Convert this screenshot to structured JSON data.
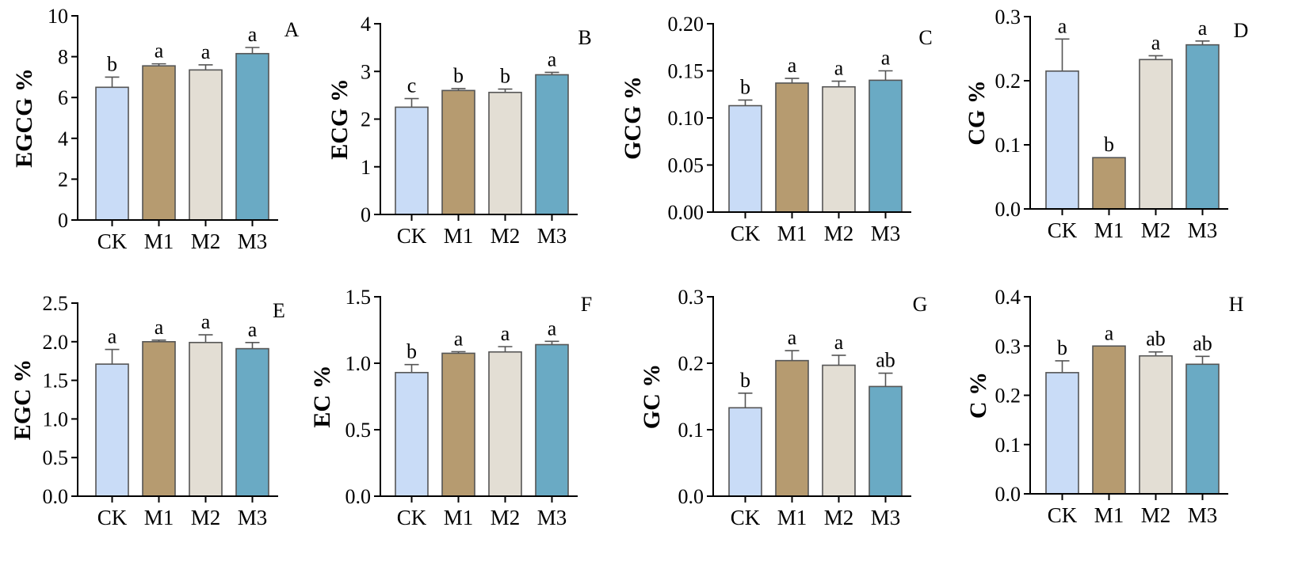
{
  "colors": [
    "#c9dcf7",
    "#b69b70",
    "#e3ded4",
    "#6aaac4"
  ],
  "chart_data": [
    {
      "type": "bar",
      "panel": "A",
      "ylabel": "EGCG %",
      "categories": [
        "CK",
        "M1",
        "M2",
        "M3"
      ],
      "values": [
        6.5,
        7.55,
        7.35,
        8.15
      ],
      "errors": [
        0.5,
        0.1,
        0.25,
        0.3
      ],
      "letters": [
        "b",
        "a",
        "a",
        "a"
      ],
      "ylim": [
        0,
        10
      ],
      "ticks": [
        0,
        2,
        4,
        6,
        8,
        10
      ],
      "tick_labels": [
        "0",
        "2",
        "4",
        "6",
        "8",
        "10"
      ]
    },
    {
      "type": "bar",
      "panel": "B",
      "ylabel": "ECG %",
      "categories": [
        "CK",
        "M1",
        "M2",
        "M3"
      ],
      "values": [
        2.25,
        2.6,
        2.56,
        2.93
      ],
      "errors": [
        0.18,
        0.04,
        0.07,
        0.05
      ],
      "letters": [
        "c",
        "b",
        "b",
        "a"
      ],
      "ylim": [
        0,
        4
      ],
      "ticks": [
        0,
        1,
        2,
        3,
        4
      ],
      "tick_labels": [
        "0",
        "1",
        "2",
        "3",
        "4"
      ]
    },
    {
      "type": "bar",
      "panel": "C",
      "ylabel": "GCG %",
      "categories": [
        "CK",
        "M1",
        "M2",
        "M3"
      ],
      "values": [
        0.113,
        0.137,
        0.133,
        0.14
      ],
      "errors": [
        0.006,
        0.005,
        0.006,
        0.01
      ],
      "letters": [
        "b",
        "a",
        "a",
        "a"
      ],
      "ylim": [
        0,
        0.2
      ],
      "ticks": [
        0,
        0.05,
        0.1,
        0.15,
        0.2
      ],
      "tick_labels": [
        "0.00",
        "0.05",
        "0.10",
        "0.15",
        "0.20"
      ]
    },
    {
      "type": "bar",
      "panel": "D",
      "ylabel": "CG %",
      "categories": [
        "CK",
        "M1",
        "M2",
        "M3"
      ],
      "values": [
        0.215,
        0.08,
        0.233,
        0.256
      ],
      "errors": [
        0.05,
        0.0,
        0.006,
        0.006
      ],
      "letters": [
        "a",
        "b",
        "a",
        "a"
      ],
      "ylim": [
        0,
        0.3
      ],
      "ticks": [
        0,
        0.1,
        0.2,
        0.3
      ],
      "tick_labels": [
        "0.0",
        "0.1",
        "0.2",
        "0.3"
      ]
    },
    {
      "type": "bar",
      "panel": "E",
      "ylabel": "EGC %",
      "categories": [
        "CK",
        "M1",
        "M2",
        "M3"
      ],
      "values": [
        1.71,
        2.0,
        1.99,
        1.91
      ],
      "errors": [
        0.19,
        0.02,
        0.1,
        0.08
      ],
      "letters": [
        "a",
        "a",
        "a",
        "a"
      ],
      "ylim": [
        0,
        2.5
      ],
      "ticks": [
        0,
        0.5,
        1,
        1.5,
        2,
        2.5
      ],
      "tick_labels": [
        "0.0",
        "0.5",
        "1.0",
        "1.5",
        "2.0",
        "2.5"
      ]
    },
    {
      "type": "bar",
      "panel": "F",
      "ylabel": "EC %",
      "categories": [
        "CK",
        "M1",
        "M2",
        "M3"
      ],
      "values": [
        0.93,
        1.075,
        1.085,
        1.14
      ],
      "errors": [
        0.06,
        0.012,
        0.04,
        0.025
      ],
      "letters": [
        "b",
        "a",
        "a",
        "a"
      ],
      "ylim": [
        0,
        1.5
      ],
      "ticks": [
        0,
        0.5,
        1,
        1.5
      ],
      "tick_labels": [
        "0.0",
        "0.5",
        "1.0",
        "1.5"
      ]
    },
    {
      "type": "bar",
      "panel": "G",
      "ylabel": "GC %",
      "categories": [
        "CK",
        "M1",
        "M2",
        "M3"
      ],
      "values": [
        0.133,
        0.204,
        0.197,
        0.165
      ],
      "errors": [
        0.022,
        0.015,
        0.015,
        0.02
      ],
      "letters": [
        "b",
        "a",
        "a",
        "ab"
      ],
      "ylim": [
        0,
        0.3
      ],
      "ticks": [
        0,
        0.1,
        0.2,
        0.3
      ],
      "tick_labels": [
        "0.0",
        "0.1",
        "0.2",
        "0.3"
      ]
    },
    {
      "type": "bar",
      "panel": "H",
      "ylabel": "C %",
      "categories": [
        "CK",
        "M1",
        "M2",
        "M3"
      ],
      "values": [
        0.246,
        0.3,
        0.28,
        0.263
      ],
      "errors": [
        0.024,
        0.0,
        0.008,
        0.016
      ],
      "letters": [
        "b",
        "a",
        "ab",
        "ab"
      ],
      "ylim": [
        0,
        0.4
      ],
      "ticks": [
        0,
        0.1,
        0.2,
        0.3,
        0.4
      ],
      "tick_labels": [
        "0.0",
        "0.1",
        "0.2",
        "0.3",
        "0.4"
      ]
    }
  ]
}
